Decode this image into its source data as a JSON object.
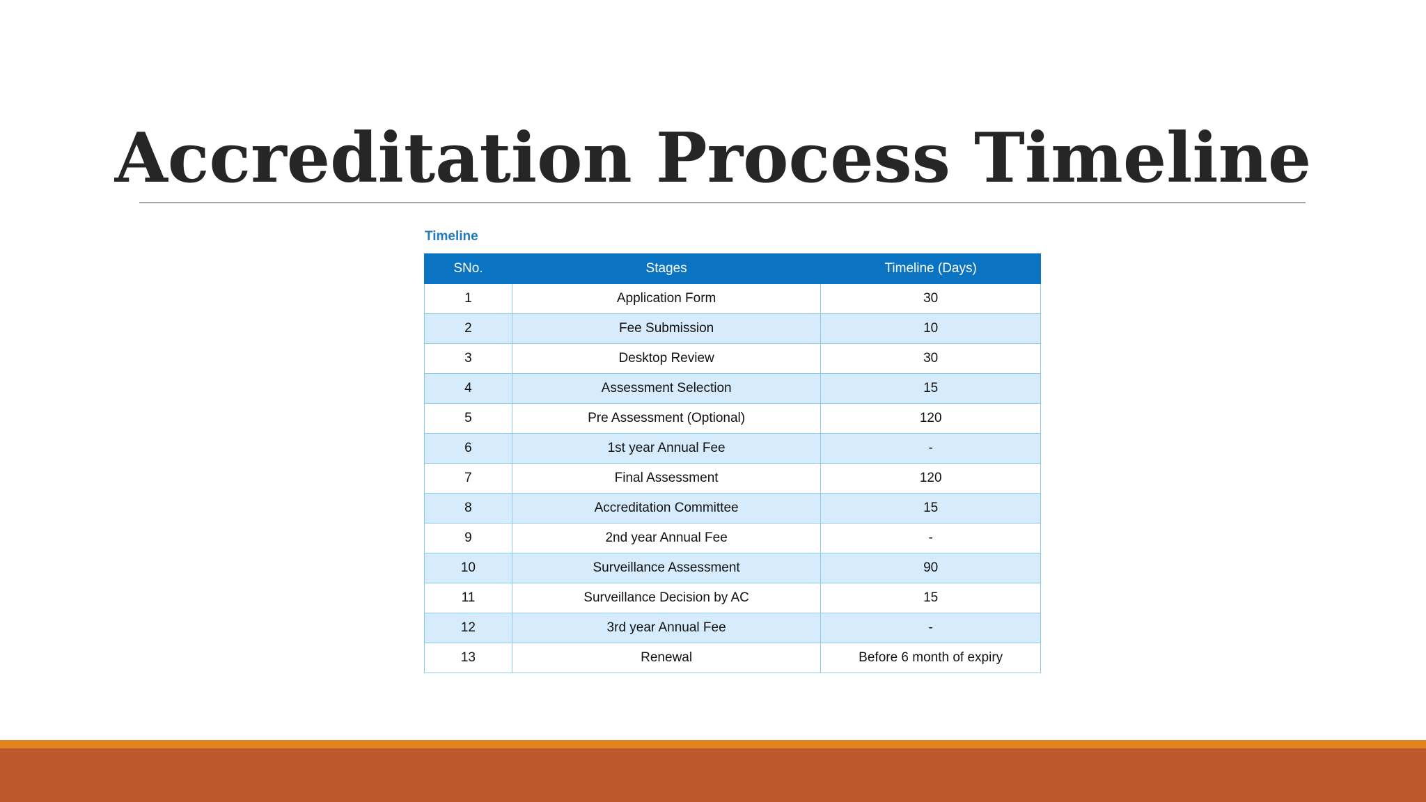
{
  "slide": {
    "title": "Accreditation Process Timeline"
  },
  "table": {
    "caption": "Timeline",
    "headers": [
      "SNo.",
      "Stages",
      "Timeline (Days)"
    ],
    "rows": [
      [
        "1",
        "Application Form",
        "30"
      ],
      [
        "2",
        "Fee Submission",
        "10"
      ],
      [
        "3",
        "Desktop Review",
        "30"
      ],
      [
        "4",
        "Assessment Selection",
        "15"
      ],
      [
        "5",
        "Pre Assessment (Optional)",
        "120"
      ],
      [
        "6",
        "1st year Annual Fee",
        "-"
      ],
      [
        "7",
        "Final Assessment",
        "120"
      ],
      [
        "8",
        "Accreditation Committee",
        "15"
      ],
      [
        "9",
        "2nd year Annual Fee",
        "-"
      ],
      [
        "10",
        "Surveillance Assessment",
        "90"
      ],
      [
        "11",
        "Surveillance Decision by AC",
        "15"
      ],
      [
        "12",
        "3rd year Annual Fee",
        "-"
      ],
      [
        "13",
        "Renewal",
        "Before 6 month of expiry"
      ]
    ]
  },
  "colors": {
    "header_bg": "#0a73c2",
    "alt_row_bg": "#d6ebfb",
    "caption": "#1f7bbd",
    "footer_orange": "#e3831f",
    "footer_rust": "#bd582c"
  }
}
